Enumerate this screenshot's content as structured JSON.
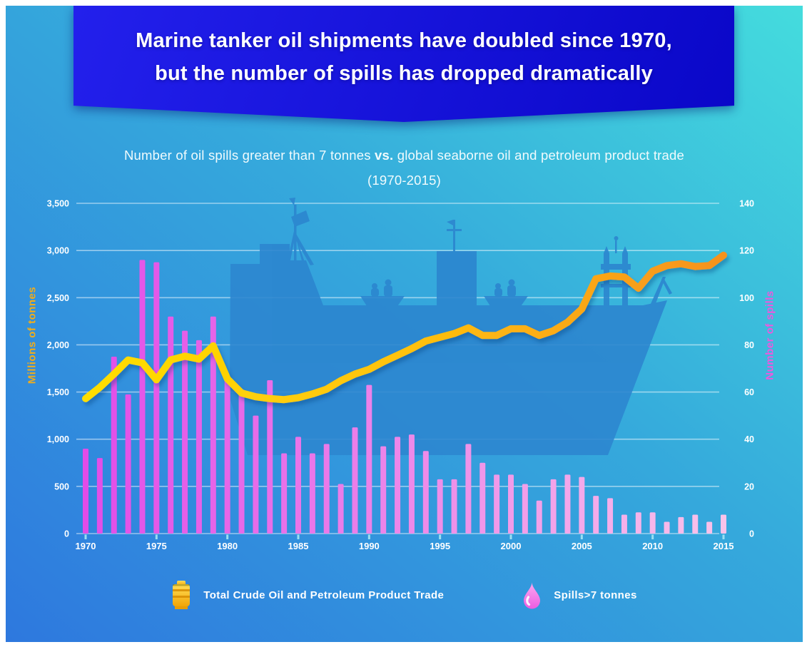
{
  "banner": {
    "line1": "Marine tanker oil shipments have doubled since 1970,",
    "line2": "but the number of spills has dropped dramatically"
  },
  "subtitle": {
    "part1": "Number of oil spills greater than 7 tonnes",
    "vs": "vs.",
    "part2": "global seaborne oil and petroleum product trade",
    "range": "(1970-2015)"
  },
  "axes": {
    "left_title": "Millions of tonnes",
    "right_title": "Number of spills",
    "left_ticks": [
      "3,500",
      "3,000",
      "2,500",
      "2,000",
      "1,500",
      "1,000",
      "500",
      "0"
    ],
    "right_ticks": [
      "140",
      "120",
      "100",
      "80",
      "60",
      "40",
      "20",
      "0"
    ],
    "x_ticks": [
      "1970",
      "1975",
      "1980",
      "1985",
      "1990",
      "1995",
      "2000",
      "2005",
      "2010",
      "2015"
    ]
  },
  "legend": {
    "items": [
      {
        "icon": "oil-barrel-icon",
        "label": "Total Crude Oil and Petroleum Product Trade"
      },
      {
        "icon": "oil-drop-icon",
        "label": "Spills>7 tonnes"
      }
    ]
  },
  "colors": {
    "bg_gradient": [
      "#2E78DE",
      "#44DCDD"
    ],
    "banner_gradient": [
      "#2320EC",
      "#0A07C8"
    ],
    "line_gradient": [
      "#FFDE00",
      "#FFC20E",
      "#F6921E"
    ],
    "bar_gradient": [
      "#E14CE8",
      "#F9C3EA"
    ],
    "left_axis_title": "#F2AD19",
    "right_axis_title": "#EC59DE",
    "ship": "#2C86CF",
    "gridline": "rgba(255,255,255,0.5)",
    "tick": "#9BDFF2",
    "label": "#FFFFFF",
    "droplet_gradient": [
      "#FBAAF0",
      "#EC5CE2"
    ],
    "barrel_gradient": [
      "#FFDE57",
      "#F2A507"
    ],
    "barrel_band": "#D88F06"
  },
  "chart_data": {
    "type": "bar",
    "title": "Number of oil spills greater than 7 tonnes vs. global seaborne oil and petroleum product trade (1970-2015)",
    "x": [
      1970,
      1971,
      1972,
      1973,
      1974,
      1975,
      1976,
      1977,
      1978,
      1979,
      1980,
      1981,
      1982,
      1983,
      1984,
      1985,
      1986,
      1987,
      1988,
      1989,
      1990,
      1991,
      1992,
      1993,
      1994,
      1995,
      1996,
      1997,
      1998,
      1999,
      2000,
      2001,
      2002,
      2003,
      2004,
      2005,
      2006,
      2007,
      2008,
      2009,
      2010,
      2011,
      2012,
      2013,
      2014,
      2015
    ],
    "series": [
      {
        "name": "Total Crude Oil and Petroleum Product Trade",
        "type": "line",
        "axis": "left",
        "unit": "millions of tonnes",
        "values": [
          1430,
          1550,
          1690,
          1840,
          1810,
          1630,
          1840,
          1880,
          1850,
          1990,
          1640,
          1490,
          1450,
          1430,
          1420,
          1440,
          1480,
          1530,
          1620,
          1690,
          1740,
          1820,
          1890,
          1960,
          2040,
          2080,
          2120,
          2180,
          2100,
          2100,
          2170,
          2170,
          2100,
          2150,
          2240,
          2380,
          2700,
          2730,
          2720,
          2600,
          2780,
          2840,
          2860,
          2830,
          2840,
          2950
        ]
      },
      {
        "name": "Spills>7 tonnes",
        "type": "bar",
        "axis": "right",
        "unit": "spills",
        "values": [
          36,
          32,
          75,
          59,
          116,
          115,
          92,
          86,
          82,
          92,
          65,
          61,
          50,
          65,
          34,
          41,
          34,
          38,
          21,
          45,
          63,
          37,
          41,
          42,
          35,
          23,
          23,
          38,
          30,
          25,
          25,
          21,
          14,
          23,
          25,
          24,
          16,
          15,
          8,
          9,
          9,
          5,
          7,
          8,
          5,
          8
        ]
      }
    ],
    "left_axis": {
      "label": "Millions of tonnes",
      "range": [
        0,
        3500
      ],
      "step": 500
    },
    "right_axis": {
      "label": "Number of spills",
      "range": [
        0,
        140
      ],
      "step": 20
    },
    "grid": true,
    "legend_position": "bottom"
  }
}
